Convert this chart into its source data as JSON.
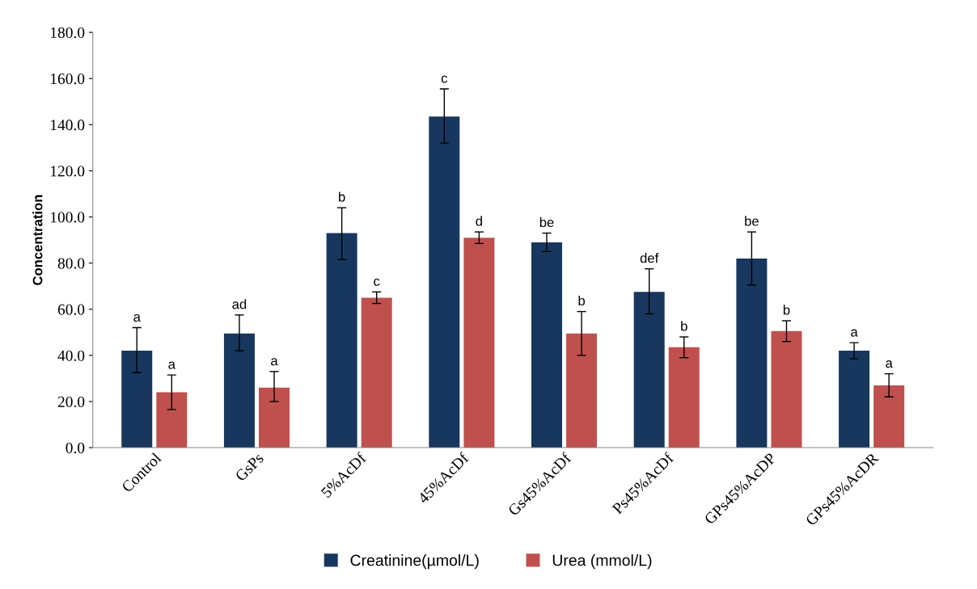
{
  "chart_data": {
    "type": "bar",
    "ylabel": "Concentration",
    "categories": [
      "Control",
      "GsPs",
      "5%AcDf",
      "45%AcDf",
      "Gs45%AcDf",
      "Ps45%AcDf",
      "GPs45%AcDP",
      "GPs45%AcDR"
    ],
    "series": [
      {
        "name": "Creatinine(µmol/L)",
        "color": "#17375e",
        "values": [
          42,
          49.5,
          93,
          143.5,
          89,
          67.5,
          82,
          42
        ],
        "value_labels": [
          "a",
          "ad",
          "b",
          "c",
          "be",
          "def",
          "be",
          "a"
        ],
        "errors": [
          [
            32.5,
            52
          ],
          [
            42,
            57.5
          ],
          [
            81.5,
            104
          ],
          [
            132,
            155.5
          ],
          [
            85,
            93
          ],
          [
            58,
            77.5
          ],
          [
            70.5,
            93.5
          ],
          [
            38.5,
            45.5
          ]
        ]
      },
      {
        "name": "Urea (mmol/L)",
        "color": "#c0504d",
        "values": [
          24,
          26,
          65,
          91,
          49.5,
          43.5,
          50.5,
          27
        ],
        "value_labels": [
          "a",
          "a",
          "c",
          "d",
          "b",
          "b",
          "b",
          "a"
        ],
        "errors": [
          [
            16.5,
            31.5
          ],
          [
            20,
            33
          ],
          [
            62.5,
            67.5
          ],
          [
            88.5,
            93.5
          ],
          [
            40,
            59
          ],
          [
            39,
            48
          ],
          [
            46,
            55
          ],
          [
            22,
            32
          ]
        ]
      }
    ],
    "ylim": [
      0,
      180
    ],
    "yticks": [
      {
        "value": 0,
        "label": "0.0"
      },
      {
        "value": 20,
        "label": "20.0"
      },
      {
        "value": 40,
        "label": "40.0"
      },
      {
        "value": 60,
        "label": "60.0"
      },
      {
        "value": 80,
        "label": "80.0"
      },
      {
        "value": 100,
        "label": "100.0"
      },
      {
        "value": 120,
        "label": "120.0"
      },
      {
        "value": 140,
        "label": "140.0"
      },
      {
        "value": 160,
        "label": "160.0"
      },
      {
        "value": 180,
        "label": "180.0"
      }
    ],
    "grid": false,
    "legend": "bottom"
  }
}
